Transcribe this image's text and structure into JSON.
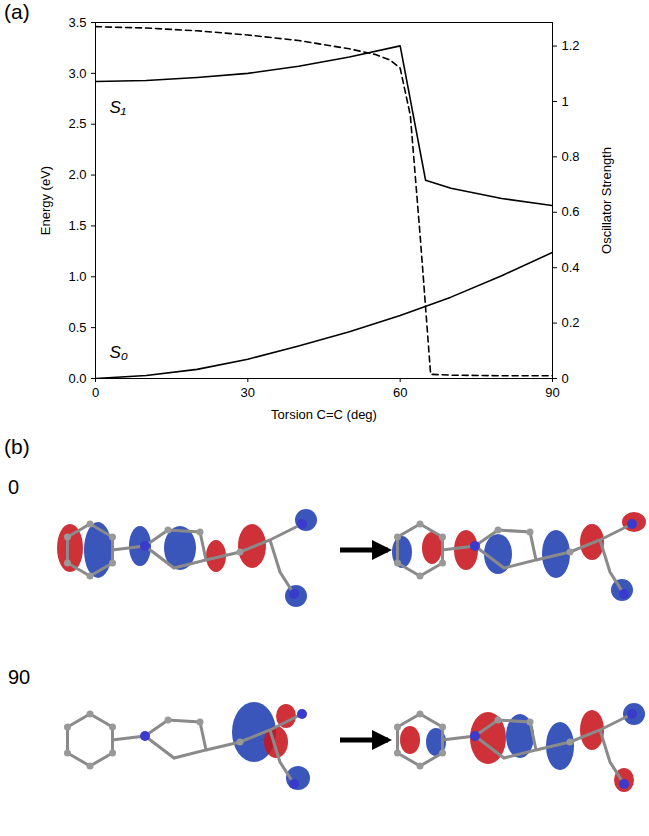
{
  "chart_data": {
    "type": "line",
    "panel": "(a)",
    "x_label": "Torsion C=C (deg)",
    "y_label": "Energy (eV)",
    "xlim": [
      0,
      90
    ],
    "xticks": [
      0,
      30,
      60,
      90
    ],
    "ylim": [
      0,
      3.5
    ],
    "yticks": [
      {
        "value": 0,
        "label": "0.0"
      },
      {
        "value": 0.5,
        "label": "0.5"
      },
      {
        "value": 1,
        "label": "1.0"
      },
      {
        "value": 1.5,
        "label": "1.5"
      },
      {
        "value": 2,
        "label": "2.0"
      },
      {
        "value": 2.5,
        "label": "2.5"
      },
      {
        "value": 3,
        "label": "3.0"
      },
      {
        "value": 3.5,
        "label": "3.5"
      }
    ],
    "y2lim": [
      0,
      1.285
    ],
    "y2ticks": [
      0,
      0.2,
      0.4,
      0.6,
      0.8,
      1,
      1.2
    ],
    "grid": false,
    "series": [
      {
        "name": "S₁",
        "color": "#000000",
        "line_style": "solid",
        "x": [
          0,
          10,
          20,
          30,
          40,
          50,
          60,
          65,
          70,
          80,
          90
        ],
        "values": [
          2.92,
          2.93,
          2.96,
          3.0,
          3.07,
          3.16,
          3.27,
          1.95,
          1.87,
          1.77,
          1.7
        ]
      },
      {
        "name": "S₀",
        "color": "#000000",
        "line_style": "solid",
        "x": [
          0,
          10,
          20,
          30,
          40,
          50,
          60,
          70,
          80,
          90
        ],
        "values": [
          0,
          0.03,
          0.09,
          0.19,
          0.32,
          0.46,
          0.62,
          0.8,
          1.01,
          1.24
        ]
      },
      {
        "name": "Oscillator Strength",
        "color": "#000000",
        "line_style": "dashed",
        "axis": "y2",
        "x": [
          0,
          10,
          20,
          30,
          40,
          50,
          55,
          58,
          60,
          62,
          64,
          66,
          70,
          80,
          90
        ],
        "values": [
          1.27,
          1.265,
          1.255,
          1.24,
          1.22,
          1.19,
          1.17,
          1.15,
          1.12,
          0.95,
          0.5,
          0.015,
          0.012,
          0.01,
          0.01
        ]
      }
    ]
  },
  "panel_b": {
    "label": "(b)",
    "rows": [
      {
        "label": "0"
      },
      {
        "label": "90"
      }
    ]
  }
}
